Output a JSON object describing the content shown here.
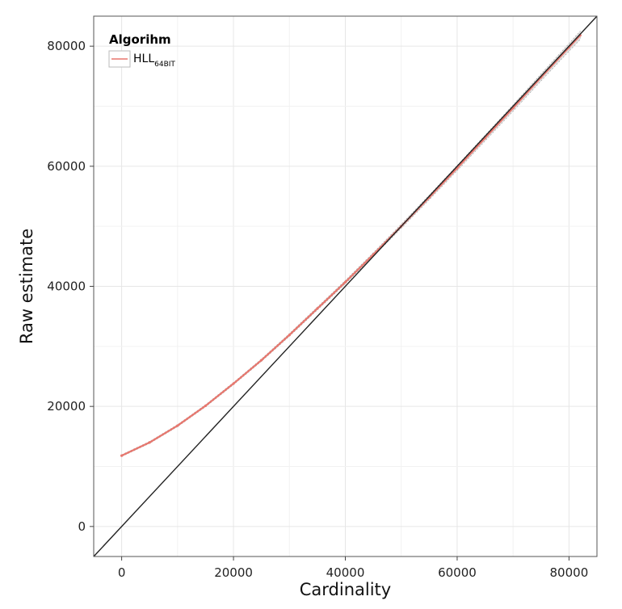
{
  "chart_data": {
    "type": "line",
    "xlabel": "Cardinality",
    "ylabel": "Raw estimate",
    "xlim": [
      -5000,
      85000
    ],
    "ylim": [
      -5000,
      85000
    ],
    "x_ticks": [
      0,
      20000,
      40000,
      60000,
      80000
    ],
    "y_ticks": [
      0,
      20000,
      40000,
      60000,
      80000
    ],
    "grid": true,
    "legend": {
      "title": "Algorihm",
      "placement": "top-left",
      "entries": [
        {
          "label_main": "HLL",
          "label_sub": "64BIT",
          "color": "#e8776e"
        }
      ]
    },
    "series": [
      {
        "name": "HLL64BIT",
        "color": "#e8776e",
        "x": [
          0,
          5000,
          10000,
          15000,
          20000,
          25000,
          30000,
          35000,
          40000,
          45000,
          50000,
          55000,
          60000,
          65000,
          70000,
          75000,
          80000,
          82000
        ],
        "y": [
          11800,
          14000,
          16800,
          20100,
          23800,
          27700,
          31900,
          36300,
          40700,
          45300,
          50000,
          54800,
          59700,
          64700,
          69700,
          74800,
          79800,
          81800
        ],
        "band_halfwidth": [
          150,
          160,
          170,
          180,
          190,
          200,
          220,
          240,
          270,
          300,
          340,
          380,
          430,
          480,
          530,
          580,
          640,
          700
        ]
      }
    ],
    "reference_line": {
      "description": "y = x",
      "color": "#222222"
    }
  }
}
